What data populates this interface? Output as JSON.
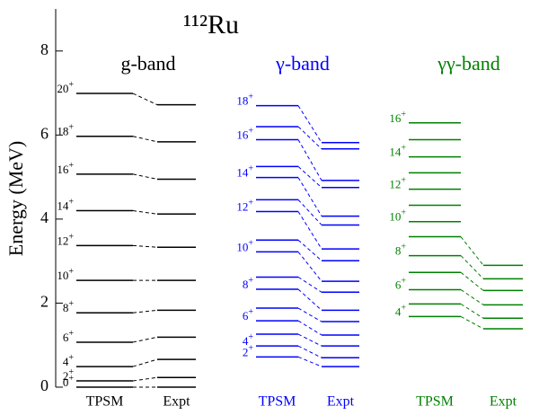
{
  "chart_data": {
    "type": "level-scheme",
    "title": "¹¹²Ru",
    "y_label": "Energy (MeV)",
    "ylim": [
      0,
      9
    ],
    "yticks": [
      0,
      2,
      4,
      6,
      8
    ],
    "bands": [
      {
        "name": "g-band",
        "color": "#000000",
        "theory_label": "TPSM",
        "expt_label": "Expt",
        "theory": [
          0,
          0.15,
          0.49,
          1.07,
          1.77,
          2.54,
          3.37,
          4.2,
          5.07,
          5.97,
          6.99
        ],
        "spin_labels": [
          "0+",
          "2+",
          "4+",
          "6+",
          "8+",
          "10+",
          "12+",
          "14+",
          "16+",
          "18+",
          "20+"
        ],
        "expt": [
          0,
          0.23,
          0.66,
          1.19,
          1.83,
          2.54,
          3.33,
          4.12,
          4.95,
          5.84,
          6.72
        ]
      },
      {
        "name": "γ-band",
        "color": "#0000ff",
        "theory_label": "TPSM",
        "expt_label": "Expt",
        "theory": [
          0.72,
          0.98,
          1.26,
          1.58,
          1.88,
          2.33,
          2.62,
          3.22,
          3.5,
          4.18,
          4.46,
          4.99,
          5.25,
          5.89,
          6.2,
          6.7
        ],
        "spin_labels": [
          "2+",
          "4+",
          null,
          "6+",
          null,
          "8+",
          null,
          "10+",
          null,
          "12+",
          null,
          "14+",
          null,
          "16+",
          null,
          "18+"
        ],
        "expt": [
          0.49,
          0.7,
          0.98,
          1.24,
          1.56,
          1.83,
          2.26,
          2.52,
          3.01,
          3.29,
          3.86,
          4.07,
          4.75,
          4.92,
          5.67,
          5.82
        ]
      },
      {
        "name": "γγ-band",
        "color": "#008000",
        "theory_label": "TPSM",
        "expt_label": "Expt",
        "theory": [
          1.68,
          1.98,
          2.32,
          2.73,
          3.13,
          3.58,
          3.94,
          4.33,
          4.71,
          5.1,
          5.48,
          5.89,
          6.29
        ],
        "spin_labels": [
          "4+",
          null,
          "6+",
          null,
          "8+",
          null,
          "10+",
          null,
          "12+",
          null,
          "14+",
          null,
          "16+"
        ],
        "expt": [
          1.39,
          1.64,
          1.96,
          2.3,
          2.58,
          2.9
        ]
      }
    ]
  }
}
